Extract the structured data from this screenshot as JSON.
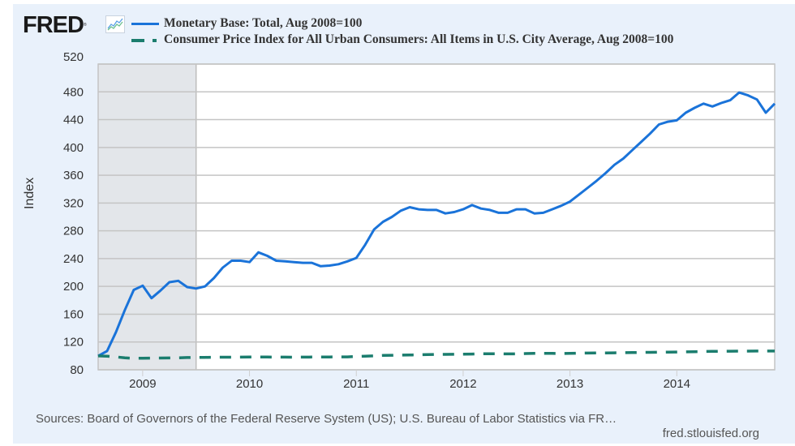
{
  "header": {
    "logo_text": "FRED",
    "logo_icon": "line-chart-icon"
  },
  "chart_data": {
    "type": "line",
    "title": "",
    "xlabel": "",
    "ylabel": "Index",
    "ylim": [
      80,
      520
    ],
    "yticks": [
      80,
      120,
      160,
      200,
      240,
      280,
      320,
      360,
      400,
      440,
      480,
      520
    ],
    "xlim": [
      "2008-08",
      "2014-12"
    ],
    "xticks": [
      "2009",
      "2010",
      "2011",
      "2012",
      "2013",
      "2014"
    ],
    "grid": true,
    "legend_position": "top-left",
    "recession_shading": {
      "start": "2008-08",
      "end": "2009-06"
    },
    "x_start": "2008-08",
    "frequency": "monthly",
    "series": [
      {
        "name": "Monetary Base: Total, Aug 2008=100",
        "color": "#1a73d9",
        "style": "solid",
        "values": [
          100,
          107,
          134,
          166,
          195,
          201,
          183,
          194,
          206,
          208,
          199,
          197,
          200,
          212,
          227,
          237,
          237,
          235,
          249,
          244,
          237,
          236,
          235,
          234,
          234,
          229,
          230,
          232,
          236,
          241,
          260,
          282,
          293,
          300,
          309,
          314,
          311,
          310,
          310,
          305,
          307,
          311,
          317,
          312,
          310,
          306,
          306,
          311,
          311,
          305,
          306,
          311,
          316,
          322,
          332,
          342,
          352,
          363,
          375,
          384,
          396,
          408,
          420,
          433,
          437,
          439,
          450,
          457,
          463,
          459,
          464,
          468,
          479,
          475,
          469,
          450,
          463
        ]
      },
      {
        "name": "Consumer Price Index for All Urban Consumers: All Items in U.S. City Average, Aug 2008=100",
        "color": "#1b7d6e",
        "style": "dashed",
        "values": [
          100,
          99.5,
          98.5,
          97.2,
          96.6,
          96.6,
          96.8,
          96.9,
          97.0,
          97.2,
          97.6,
          97.8,
          97.9,
          98.0,
          98.1,
          98.1,
          98.2,
          98.3,
          98.3,
          98.3,
          98.2,
          98.2,
          98.1,
          98.2,
          98.3,
          98.3,
          98.4,
          98.5,
          98.6,
          99.1,
          99.5,
          100.1,
          100.6,
          100.9,
          101.1,
          101.2,
          101.6,
          101.9,
          102.1,
          102.2,
          102.3,
          102.5,
          102.7,
          103.0,
          103.1,
          103.0,
          102.9,
          102.9,
          103.3,
          103.6,
          103.7,
          103.6,
          103.5,
          103.6,
          103.9,
          104.1,
          104.2,
          104.3,
          104.4,
          104.6,
          104.8,
          105.0,
          105.1,
          105.3,
          105.4,
          105.6,
          105.8,
          106.0,
          106.3,
          106.5,
          106.6,
          106.7,
          106.8,
          106.9,
          107.0,
          107.0,
          107.0
        ]
      }
    ]
  },
  "footer": {
    "sources": "Sources: Board of Governors of the Federal Reserve System (US); U.S. Bureau of Labor Statistics via FR…",
    "site": "fred.stlouisfed.org"
  }
}
